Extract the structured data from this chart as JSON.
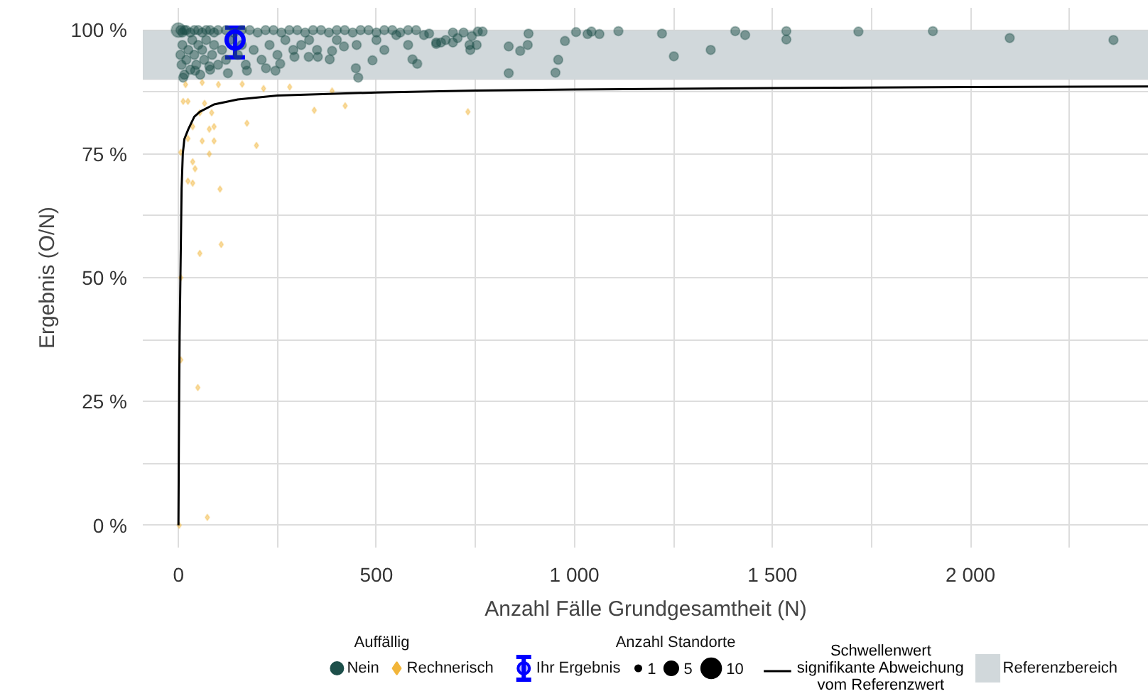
{
  "chart_data": {
    "type": "bubble",
    "xlabel": "Anzahl Fälle Grundgesamtheit (N)",
    "ylabel": "Ergebnis (O/N)",
    "legend_title": "Auffällig",
    "annotations": [
      "Anzahl Standorte"
    ],
    "size_legend": [
      1,
      5,
      10
    ],
    "xlim": [
      -90,
      2450
    ],
    "ylim": [
      -4.5,
      104.5
    ],
    "xticks": [
      0,
      {
        "value": 250,
        "label": null
      },
      500,
      {
        "value": 750,
        "label": null
      },
      {
        "value": 1000,
        "label": "1 000"
      },
      {
        "value": 1250,
        "label": null
      },
      {
        "value": 1500,
        "label": "1 500"
      },
      {
        "value": 1750,
        "label": null
      },
      {
        "value": 2000,
        "label": "2 000"
      },
      {
        "value": 2250,
        "label": null
      }
    ],
    "yticks": [
      {
        "value": 0,
        "label": "0 %"
      },
      {
        "value": 12.5,
        "label": null
      },
      {
        "value": 25,
        "label": "25 %"
      },
      {
        "value": 37.5,
        "label": null
      },
      {
        "value": 50,
        "label": "50 %"
      },
      {
        "value": 62.5,
        "label": null
      },
      {
        "value": 75,
        "label": "75 %"
      },
      {
        "value": 87.5,
        "label": null
      },
      {
        "value": 100,
        "label": "100 %"
      }
    ],
    "grid": true,
    "legend": "bottom",
    "bands": [
      {
        "axis": "y",
        "from": 90,
        "to": 100,
        "label": "Referenzbereich",
        "color": "#d1d8db"
      }
    ],
    "series": [
      {
        "name": "Nein",
        "color": "#1d4f4a",
        "marker": "circle",
        "x": [
          0,
          5,
          10,
          15,
          20,
          30,
          40,
          50,
          60,
          70,
          80,
          90,
          100,
          120,
          140,
          160,
          180,
          200,
          220,
          240,
          260,
          280,
          300,
          320,
          340,
          360,
          380,
          400,
          420,
          440,
          460,
          480,
          500,
          520,
          540,
          560,
          580,
          600,
          5,
          8,
          10,
          15,
          20,
          25,
          30,
          35,
          40,
          45,
          50,
          55,
          60,
          65,
          70,
          80,
          85,
          90,
          100,
          110,
          120,
          130,
          150,
          160,
          170,
          190,
          210,
          230,
          250,
          270,
          290,
          310,
          330,
          350,
          400,
          450,
          500,
          550,
          620,
          12,
          42,
          78,
          125,
          173,
          221,
          245,
          257,
          293,
          329,
          352,
          382,
          388,
          418,
          448,
          454,
          490,
          520,
          580,
          591,
          603,
          651,
          675,
          633,
          651,
          663,
          693,
          693,
          705,
          720,
          741,
          735,
          737,
          753,
          756,
          768,
          834,
          834,
          863,
          882,
          884,
          952,
          959,
          976,
          1004,
          1033,
          1043,
          1063,
          1111,
          1221,
          1251,
          1344,
          1406,
          1431,
          1535,
          1535,
          1717,
          1905,
          2099,
          2361
        ],
        "values": [
          100,
          100,
          99.5,
          100,
          100,
          99.5,
          100,
          100,
          99.5,
          100,
          100,
          99.5,
          100,
          100,
          99.5,
          100,
          100,
          99.5,
          100,
          100,
          99.5,
          100,
          100,
          99.5,
          100,
          100,
          99.5,
          100,
          100,
          99.5,
          100,
          100,
          99.5,
          100,
          100,
          99.5,
          100,
          100,
          95,
          93,
          97,
          91,
          94,
          96,
          92,
          98,
          95,
          93,
          97,
          91,
          96,
          94,
          98,
          92,
          95,
          97,
          93,
          96,
          94,
          98,
          95,
          97,
          93,
          96,
          94,
          97,
          95,
          98,
          96,
          97,
          98,
          96,
          98,
          97,
          98,
          99,
          99,
          90.4,
          91.8,
          92.7,
          91.3,
          91.8,
          92.3,
          91.8,
          93.2,
          94.6,
          94.6,
          94.6,
          94.1,
          95.8,
          96.7,
          92.3,
          90.4,
          93.9,
          96,
          97,
          94.1,
          93.2,
          97.5,
          98,
          99.3,
          97.2,
          97.5,
          99.5,
          97.5,
          98.4,
          99.5,
          98.8,
          97,
          96,
          97,
          99.7,
          99.7,
          96.7,
          91.3,
          95.8,
          97,
          99.3,
          91.4,
          94,
          97.8,
          99.6,
          99.2,
          99.7,
          99.2,
          99.8,
          99.3,
          94.7,
          96,
          99.8,
          99,
          99.8,
          98.1,
          99.7,
          99.8,
          98.4,
          98
        ],
        "sizes": [
          5,
          2,
          2,
          2,
          2,
          2,
          2,
          2,
          2,
          2,
          2,
          2,
          2,
          2,
          2,
          2,
          2,
          2,
          2,
          2,
          2,
          2,
          2,
          2,
          2,
          2,
          2,
          2,
          2,
          2,
          2,
          2,
          2,
          2,
          2,
          2,
          2,
          2,
          2,
          2,
          2,
          2,
          2,
          2,
          2,
          2,
          2,
          2,
          2,
          2,
          2,
          2,
          2,
          2,
          2,
          2,
          2,
          2,
          2,
          2,
          2,
          2,
          2,
          2,
          2,
          2,
          2,
          2,
          2,
          2,
          2,
          2,
          2,
          2,
          2,
          2,
          2,
          2,
          2,
          2,
          2,
          2,
          2,
          2,
          2,
          2,
          2,
          2,
          2,
          2,
          2,
          2,
          2,
          2,
          2,
          2,
          2,
          2,
          2,
          2,
          2,
          2,
          2,
          2,
          2,
          2,
          2,
          2,
          2,
          2,
          2,
          2,
          2,
          2,
          2,
          2,
          2,
          2,
          2,
          2,
          2,
          2,
          2,
          2,
          2,
          2,
          2,
          2,
          2,
          2,
          2,
          2,
          2,
          2,
          2,
          2,
          2
        ]
      },
      {
        "name": "Rechnerisch",
        "color": "#f2b53a",
        "marker": "diamond",
        "x": [
          18,
          60,
          101,
          161,
          215,
          281,
          388,
          421,
          343,
          12,
          24,
          66,
          54,
          84,
          78,
          90,
          36,
          173,
          24,
          60,
          90,
          197,
          78,
          6,
          36,
          42,
          24,
          36,
          105,
          54,
          108,
          6,
          6,
          49,
          2,
          73,
          731
        ],
        "values": [
          89,
          89.4,
          89,
          89.1,
          88.2,
          88.5,
          87.7,
          84.7,
          83.8,
          85.6,
          85.6,
          85.2,
          83.3,
          83.3,
          80,
          80.5,
          80.5,
          81.2,
          78.1,
          77.6,
          77.6,
          76.7,
          75,
          75.3,
          73.4,
          72,
          69.5,
          69.1,
          67.9,
          54.9,
          56.7,
          50,
          33.4,
          27.8,
          0,
          1.6,
          83.5
        ],
        "sizes": [
          1,
          1,
          1,
          1,
          1,
          1,
          1,
          1,
          1,
          1,
          1,
          1,
          1,
          1,
          1,
          1,
          1,
          1,
          1,
          1,
          1,
          1,
          1,
          1,
          1,
          1,
          1,
          1,
          1,
          1,
          1,
          1,
          1,
          1,
          1,
          1,
          1
        ]
      },
      {
        "name": "Schwellenwert\nsignifikante Abweichung\nvom Referenzwert",
        "type": "line",
        "color": "#000000",
        "line_style": "solid",
        "x": [
          0,
          1,
          2,
          3,
          5,
          8,
          11,
          15,
          25,
          40,
          54,
          90,
          150,
          250,
          500,
          750,
          1000,
          1500,
          2000,
          2450
        ],
        "values": [
          0,
          15,
          28,
          38,
          50,
          68,
          75,
          78,
          80,
          82.5,
          83.5,
          85,
          86,
          86.8,
          87.4,
          87.8,
          88,
          88.3,
          88.5,
          88.6
        ]
      },
      {
        "name": "Ihr Ergebnis",
        "type": "scatter",
        "color": "#0000ff",
        "marker": "circle",
        "x": [
          143
        ],
        "values": [
          98
        ],
        "errors": [
          [
            94.5,
            100.5
          ]
        ]
      }
    ]
  }
}
